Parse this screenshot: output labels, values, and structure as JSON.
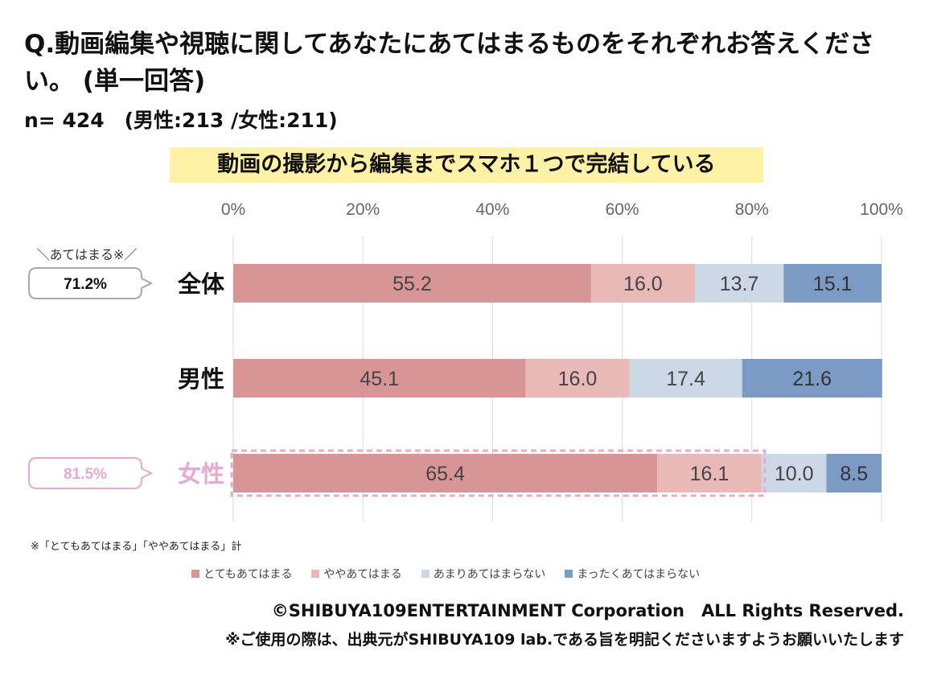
{
  "header": {
    "question": "Q.動画編集や視聴に関してあなたにあてはまるものをそれぞれお答えください。 (単一回答)",
    "sample": "n= 424　(男性:213 /女性:211)"
  },
  "colors": {
    "very": "#d89595",
    "somewhat": "#e9b9b8",
    "not_much": "#cdd8e7",
    "not_at_all": "#7b9bc4",
    "female_accent": "#e6a9d2",
    "grid": "#d9d9d9"
  },
  "chart_data": {
    "type": "bar",
    "orientation": "horizontal",
    "stacked": true,
    "title": "動画の撮影から編集までスマホ１つで完結している",
    "categories": [
      "全体",
      "男性",
      "女性"
    ],
    "series": [
      {
        "name": "とてもあてはまる",
        "values": [
          55.2,
          45.1,
          65.4
        ]
      },
      {
        "name": "ややあてはまる",
        "values": [
          16.0,
          16.0,
          16.1
        ]
      },
      {
        "name": "あまりあてはまらない",
        "values": [
          13.7,
          17.4,
          10.0
        ]
      },
      {
        "name": "まったくあてはまらない",
        "values": [
          15.1,
          21.6,
          8.5
        ]
      }
    ],
    "xlim": [
      0,
      100
    ],
    "x_ticks": [
      "0%",
      "20%",
      "40%",
      "60%",
      "80%",
      "100%"
    ],
    "grid": true,
    "legend_position": "bottom",
    "summary_header": "＼あてはまる※／",
    "summaries": [
      {
        "category": "全体",
        "label": "71.2%"
      },
      {
        "category": "女性",
        "label": "81.5%"
      }
    ],
    "highlighted_category": "女性"
  },
  "footnote": "※「とてもあてはまる」「ややあてはまる」計",
  "copyright": "©SHIBUYA109ENTERTAINMENT Corporation　ALL Rights Reserved.",
  "usage_note": "※ご使用の際は、出典元がSHIBUYA109 lab.である旨を明記くださいますようお願いいたします"
}
